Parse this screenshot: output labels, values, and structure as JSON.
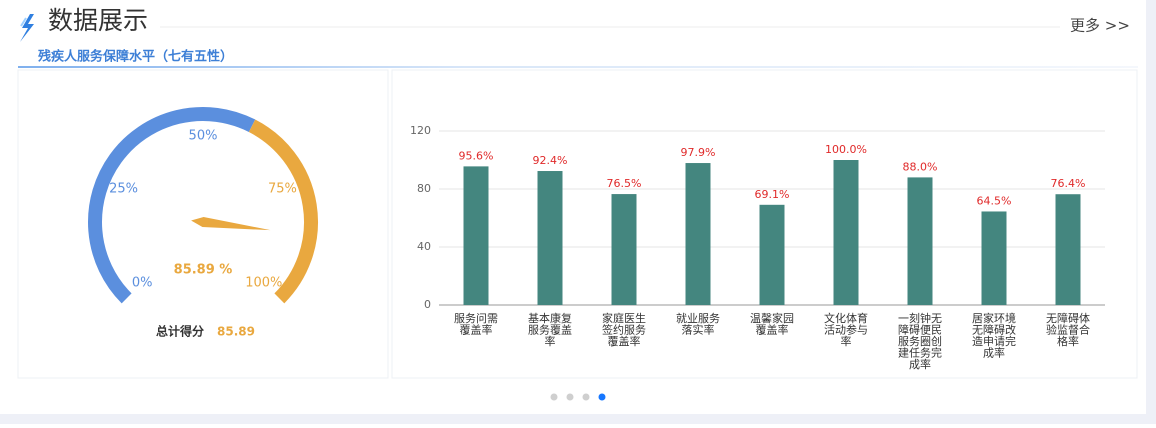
{
  "header": {
    "title": "数据展示",
    "more": "更多 >>",
    "subtitle": "残疾人服务保障水平（七有五性）"
  },
  "chart_data": [
    {
      "type": "gauge",
      "value": 85.89,
      "value_label": "85.89 %",
      "range": [
        0,
        100
      ],
      "ticks": [
        {
          "value": 0,
          "label": "0%"
        },
        {
          "value": 25,
          "label": "25%"
        },
        {
          "value": 50,
          "label": "50%"
        },
        {
          "value": 75,
          "label": "75%"
        },
        {
          "value": 100,
          "label": "100%"
        }
      ],
      "bands": [
        {
          "to": 60,
          "color": "#5b8fde"
        },
        {
          "to": 100,
          "color": "#e9a83f"
        }
      ],
      "needle_color": "#e9a83f",
      "total_label": "总计得分"
    },
    {
      "type": "bar",
      "categories": [
        "服务问需覆盖率",
        "基本康复服务覆盖率",
        "家庭医生签约服务覆盖率",
        "就业服务落实率",
        "温馨家园覆盖率",
        "文化体育活动参与率",
        "一刻钟无障碍便民服务圈创建任务完成率",
        "居家环境无障碍改造申请完成率",
        "无障碍体验监督合格率"
      ],
      "values": [
        95.6,
        92.4,
        76.5,
        97.9,
        69.1,
        100.0,
        88.0,
        64.5,
        76.4
      ],
      "value_labels": [
        "95.6%",
        "92.4%",
        "76.5%",
        "97.9%",
        "69.1%",
        "100.0%",
        "88.0%",
        "64.5%",
        "76.4%"
      ],
      "color": "#44867f",
      "value_label_color": "#e02a2a",
      "ylim": [
        0,
        120
      ],
      "yticks": [
        0,
        40,
        80,
        120
      ],
      "grid": true
    }
  ]
}
